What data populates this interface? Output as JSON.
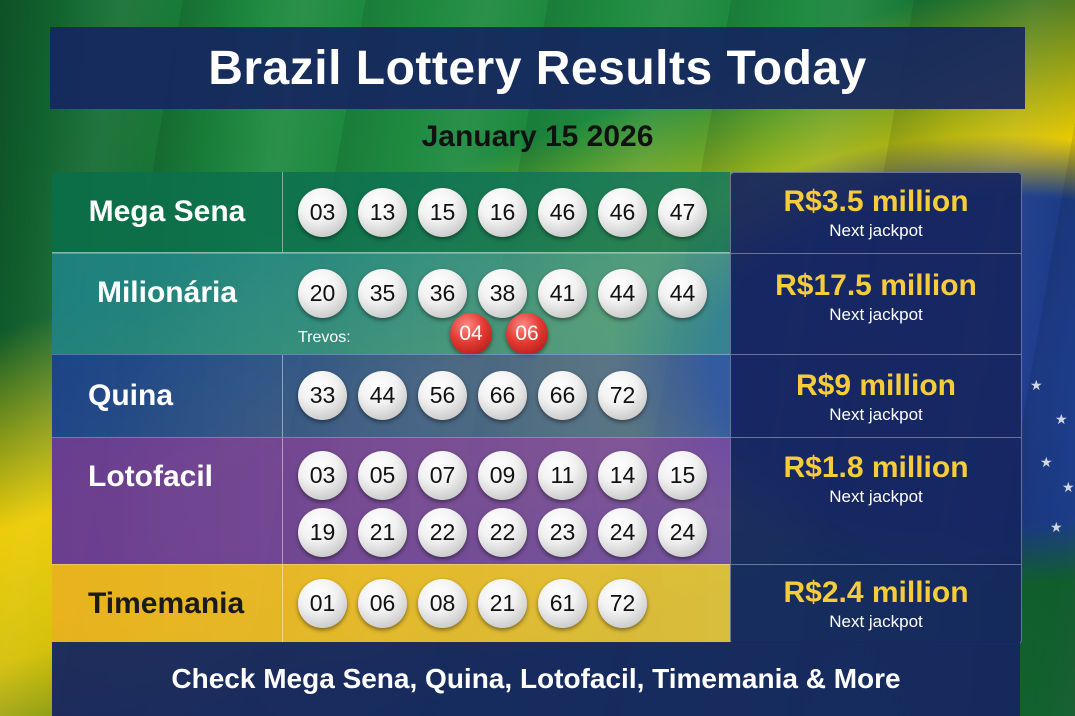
{
  "page": {
    "title": "Brazil Lottery Results Today",
    "date": "January 15 2026",
    "footer": "Check Mega Sena, Quina, Lotofacil, Timemania & More"
  },
  "colors": {
    "header_navy": "#162660",
    "jackpot_gold": "#f7cc3a",
    "row_mega_sena": "#0e7a52",
    "row_milionaria": "#1e8a86",
    "row_quina": "#1f4a8c",
    "row_lotofacil": "#6a3a9a",
    "row_timemania": "#e6b520",
    "trevo_red": "#e23a33"
  },
  "lotteries": [
    {
      "name": "Mega Sena",
      "numbers": [
        "03",
        "13",
        "15",
        "16",
        "46",
        "46",
        "47"
      ],
      "jackpot": "R$3.5 million",
      "jackpot_label": "Next jackpot"
    },
    {
      "name": "Milionária",
      "numbers": [
        "20",
        "35",
        "36",
        "38",
        "41",
        "44",
        "44"
      ],
      "trevos_label": "Trevos:",
      "trevos": [
        "04",
        "06"
      ],
      "jackpot": "R$17.5 million",
      "jackpot_label": "Next jackpot"
    },
    {
      "name": "Quina",
      "numbers": [
        "33",
        "44",
        "56",
        "66",
        "66",
        "72"
      ],
      "jackpot": "R$9 million",
      "jackpot_label": "Next jackpot"
    },
    {
      "name": "Lotofacil",
      "numbers": [
        "03",
        "05",
        "07",
        "09",
        "11",
        "14",
        "15"
      ],
      "numbers_row2": [
        "19",
        "21",
        "22",
        "22",
        "23",
        "24",
        "24"
      ],
      "jackpot": "R$1.8 million",
      "jackpot_label": "Next jackpot"
    },
    {
      "name": "Timemania",
      "numbers": [
        "01",
        "06",
        "08",
        "21",
        "61",
        "72"
      ],
      "jackpot": "R$2.4 million",
      "jackpot_label": "Next jackpot"
    }
  ]
}
